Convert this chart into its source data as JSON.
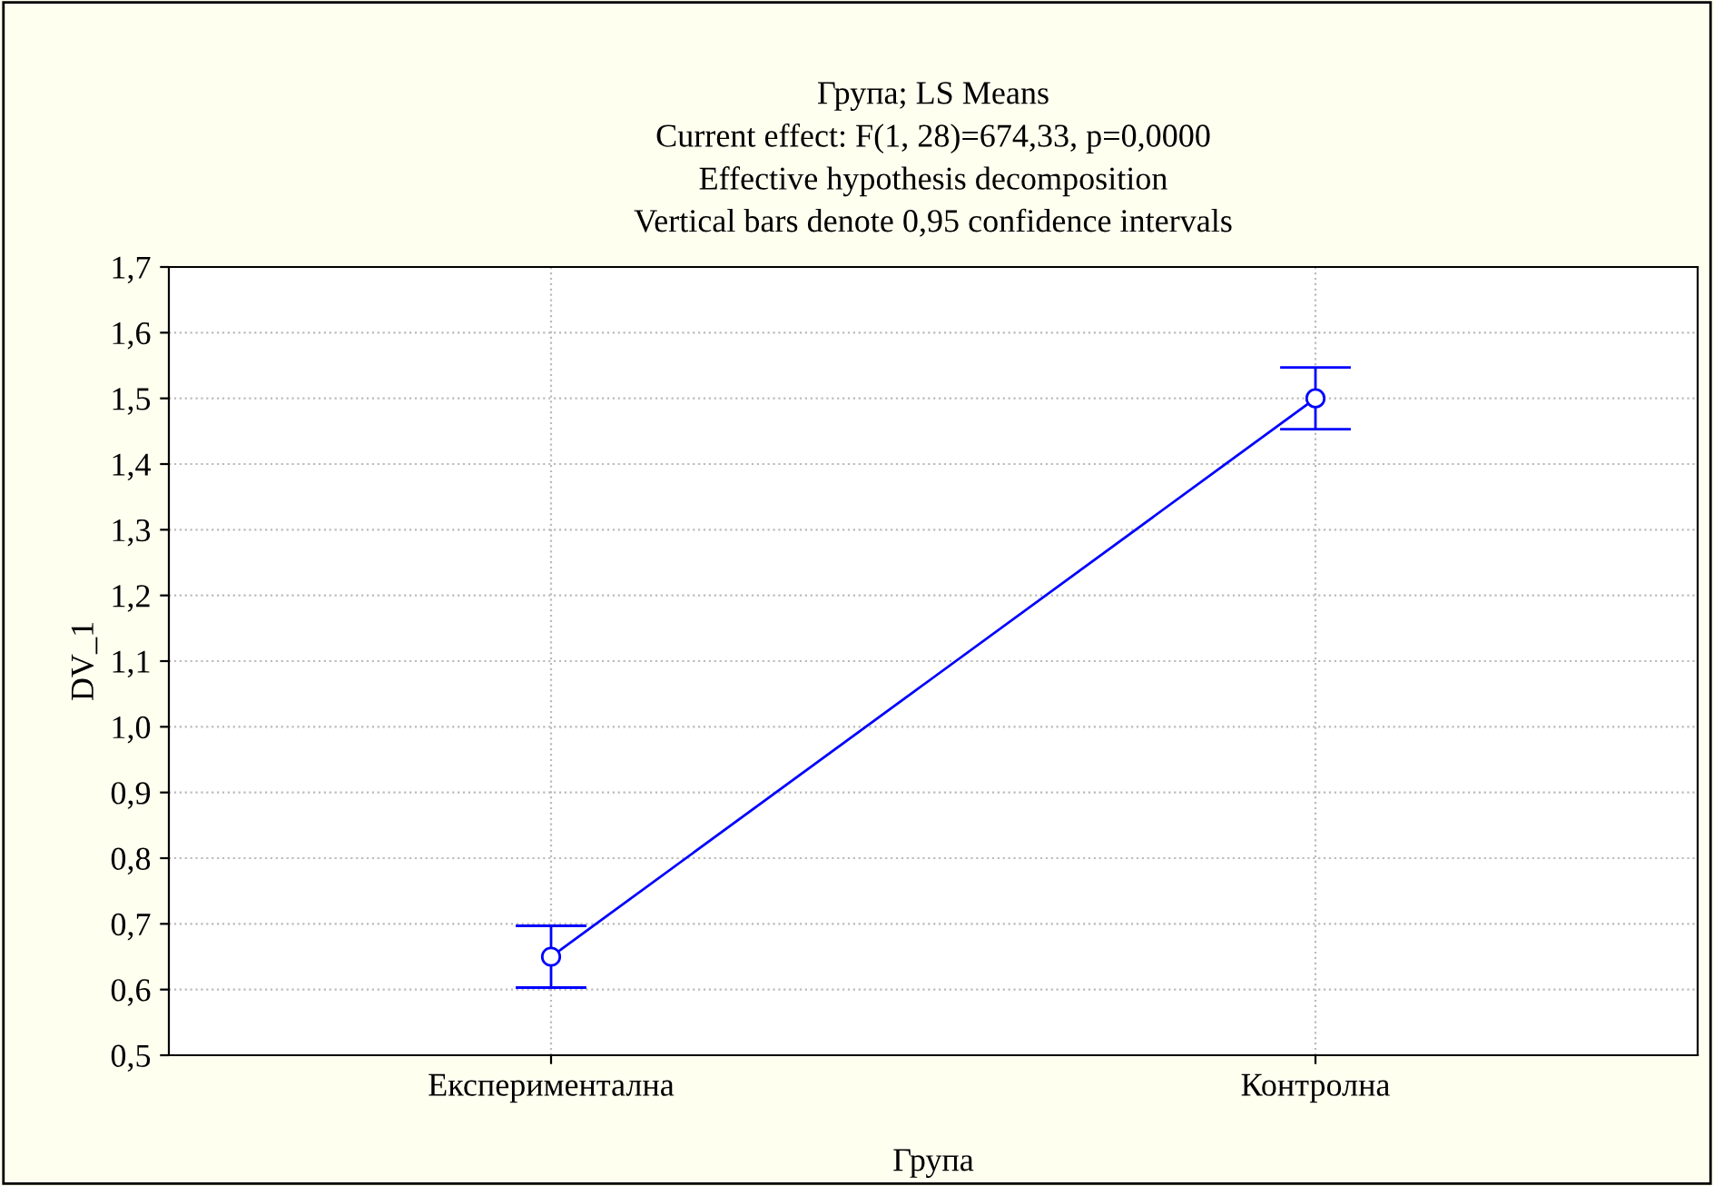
{
  "chart_data": {
    "type": "line",
    "title": "Група; LS Means",
    "subtitle": "Current effect: F(1, 28)=674,33, p=0,0000\nEffective hypothesis decomposition\nVertical bars denote 0,95 confidence intervals",
    "xlabel": "Група",
    "ylabel": "DV_1",
    "categories": [
      "Експериментална",
      "Контролна"
    ],
    "series": [
      {
        "color": "#0000ff",
        "values": [
          0.65,
          1.5
        ],
        "errors": [
          0.047,
          0.047
        ]
      }
    ],
    "ylim": [
      0.5,
      1.7
    ],
    "yticks": [
      {
        "value": 0.5,
        "label": "0,5"
      },
      {
        "value": 0.6,
        "label": "0,6"
      },
      {
        "value": 0.7,
        "label": "0,7"
      },
      {
        "value": 0.8,
        "label": "0,8"
      },
      {
        "value": 0.9,
        "label": "0,9"
      },
      {
        "value": 1.0,
        "label": "1,0"
      },
      {
        "value": 1.1,
        "label": "1,1"
      },
      {
        "value": 1.2,
        "label": "1,2"
      },
      {
        "value": 1.3,
        "label": "1,3"
      },
      {
        "value": 1.4,
        "label": "1,4"
      },
      {
        "value": 1.5,
        "label": "1,5"
      },
      {
        "value": 1.6,
        "label": "1,6"
      },
      {
        "value": 1.7,
        "label": "1,7"
      }
    ],
    "grid": true,
    "marker": "circle",
    "line_style": "solid"
  }
}
